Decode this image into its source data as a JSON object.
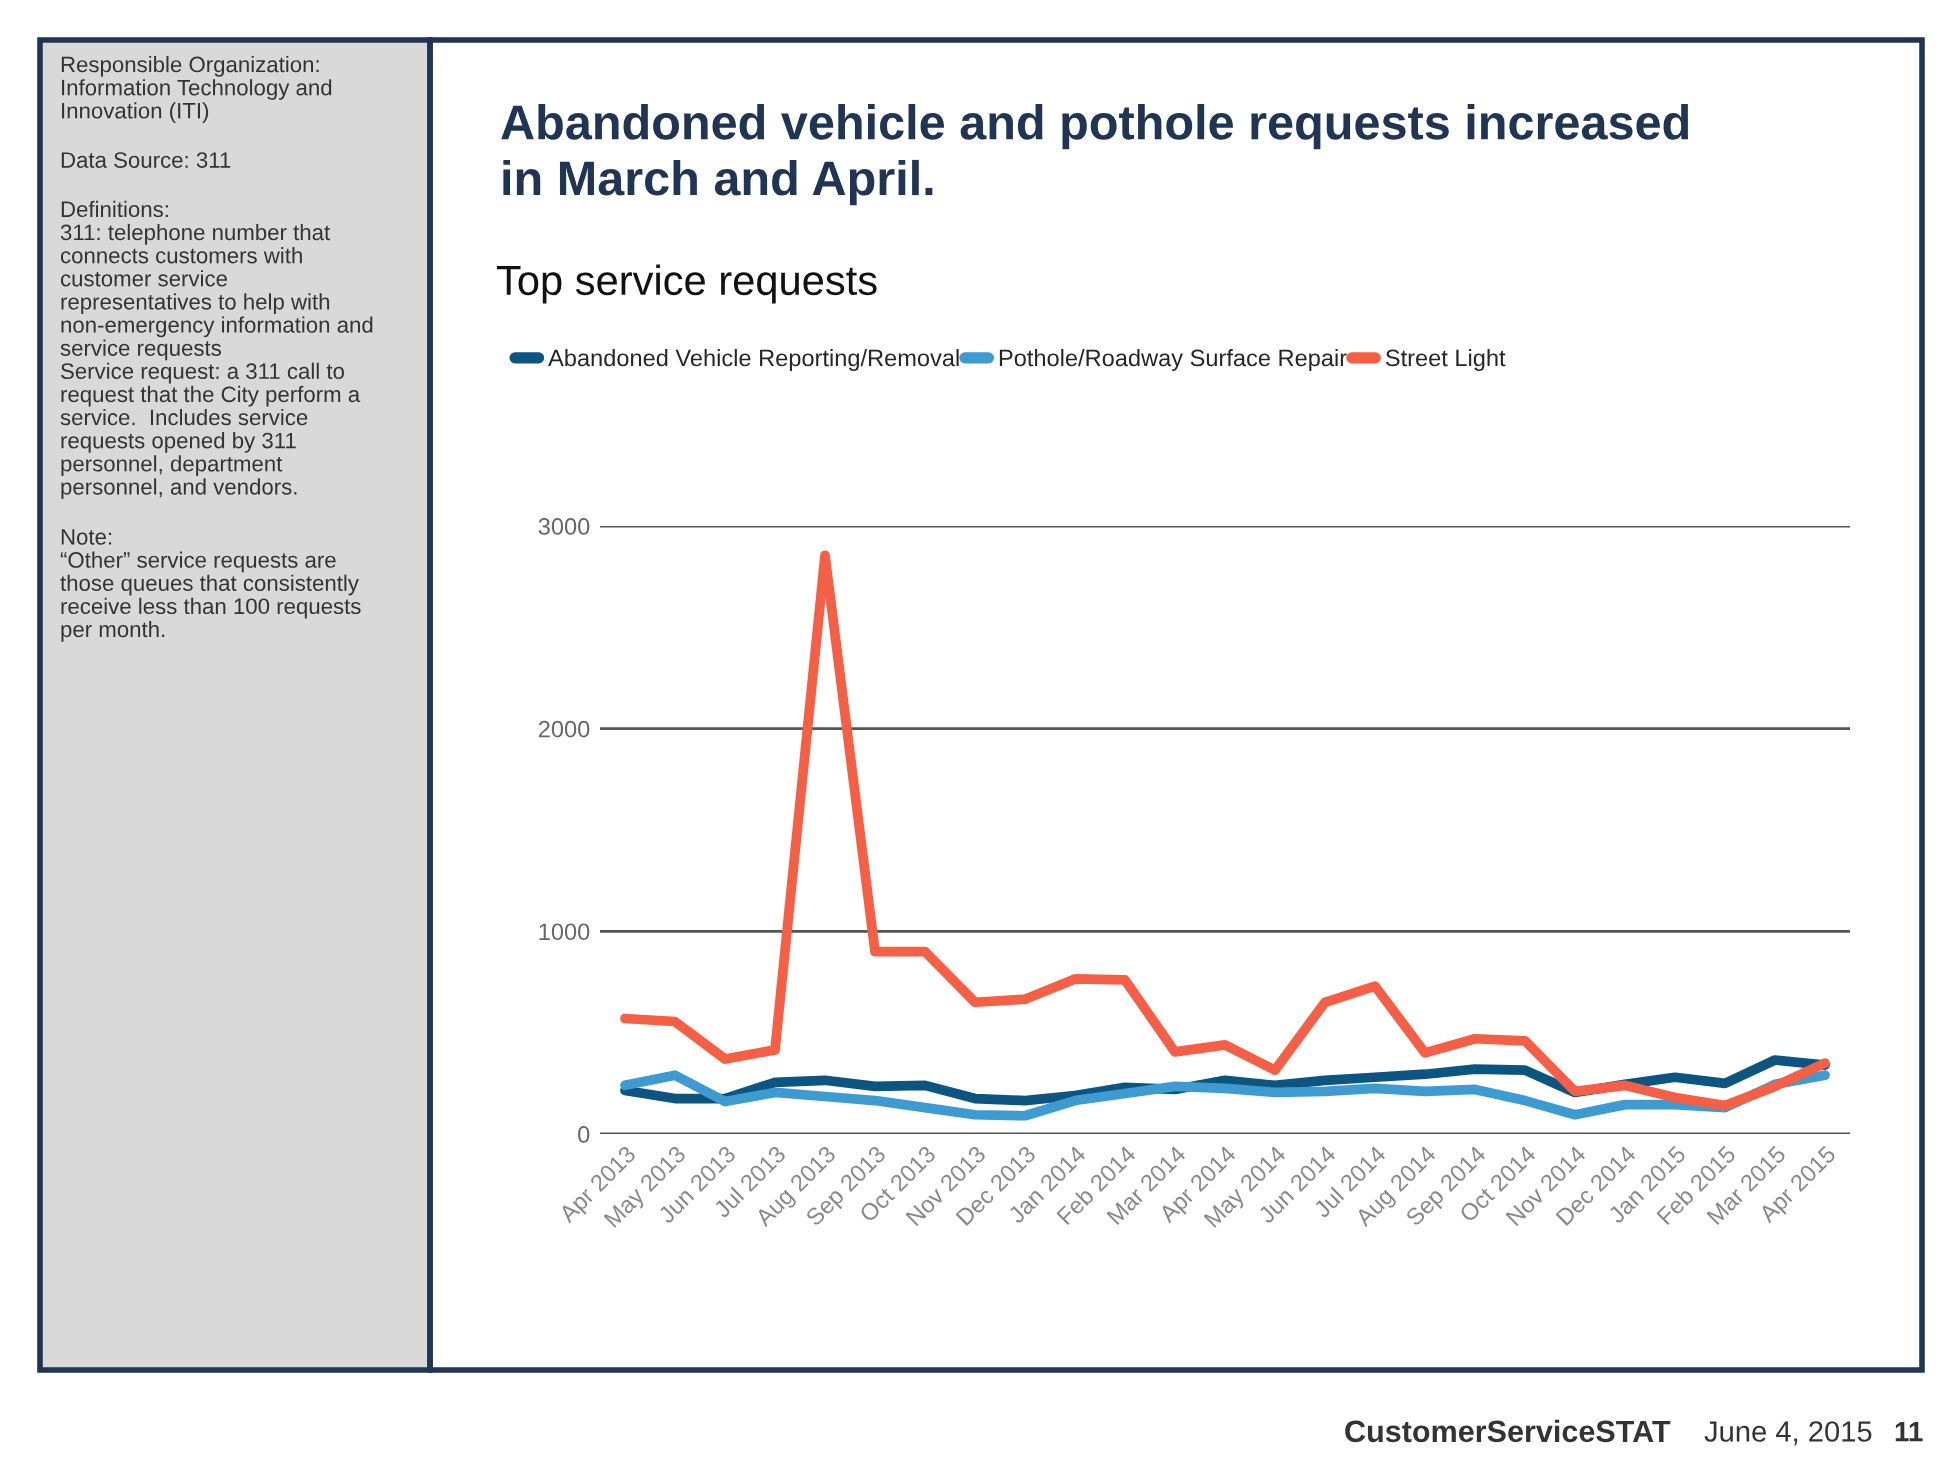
{
  "chart_data": {
    "type": "line",
    "title": "Abandoned vehicle and pothole requests increased\nin March and April.",
    "subtitle": "Top service requests",
    "categories": [
      "Apr 2013",
      "May 2013",
      "Jun 2013",
      "Jul 2013",
      "Aug 2013",
      "Sep 2013",
      "Oct 2013",
      "Nov 2013",
      "Dec 2013",
      "Jan 2014",
      "Feb 2014",
      "Mar 2014",
      "Apr 2014",
      "May 2014",
      "Jun 2014",
      "Jul 2014",
      "Aug 2014",
      "Sep 2014",
      "Oct 2014",
      "Nov 2014",
      "Dec 2014",
      "Jan 2015",
      "Feb 2015",
      "Mar 2015",
      "Apr 2015"
    ],
    "series": [
      {
        "name": "Abandoned Vehicle Reporting/Removal",
        "color": "#0b5580",
        "values": [
          215,
          175,
          175,
          255,
          265,
          235,
          240,
          175,
          165,
          190,
          230,
          220,
          265,
          240,
          265,
          280,
          295,
          320,
          315,
          205,
          245,
          280,
          250,
          365,
          340
        ]
      },
      {
        "name": "Pothole/Roadway Surface Repair",
        "color": "#3d9bd1",
        "values": [
          240,
          290,
          160,
          205,
          185,
          165,
          130,
          95,
          90,
          165,
          200,
          235,
          225,
          205,
          210,
          225,
          210,
          220,
          165,
          95,
          145,
          145,
          130,
          245,
          290
        ]
      },
      {
        "name": "Street Light",
        "color": "#f55f45",
        "values": [
          570,
          555,
          370,
          415,
          2855,
          900,
          900,
          650,
          665,
          765,
          760,
          405,
          440,
          315,
          650,
          730,
          400,
          470,
          460,
          210,
          240,
          180,
          140,
          235,
          350
        ]
      }
    ],
    "ylim": [
      0,
      3000
    ],
    "yticks": [
      0,
      1000,
      2000,
      3000
    ],
    "grid": "y",
    "legend": "top left",
    "annotations": [
      "Responsible Organization:\nInformation Technology and\nInnovation (ITI)",
      "Data Source: 311",
      "Definitions:\n311: telephone number that\nconnects customers with\ncustomer service\nrepresentatives to help with\nnon-emergency information and\nservice requests\nService request: a 311 call to\nrequest that the City perform a\nservice.  Includes service\nrequests opened by 311\npersonnel, department\npersonnel, and vendors.",
      "Note:\n“Other” service requests are\nthose queues that consistently\nreceive less than 100 requests\nper month.",
      "CustomerServiceSTAT",
      "June 4, 2015",
      "11"
    ]
  }
}
